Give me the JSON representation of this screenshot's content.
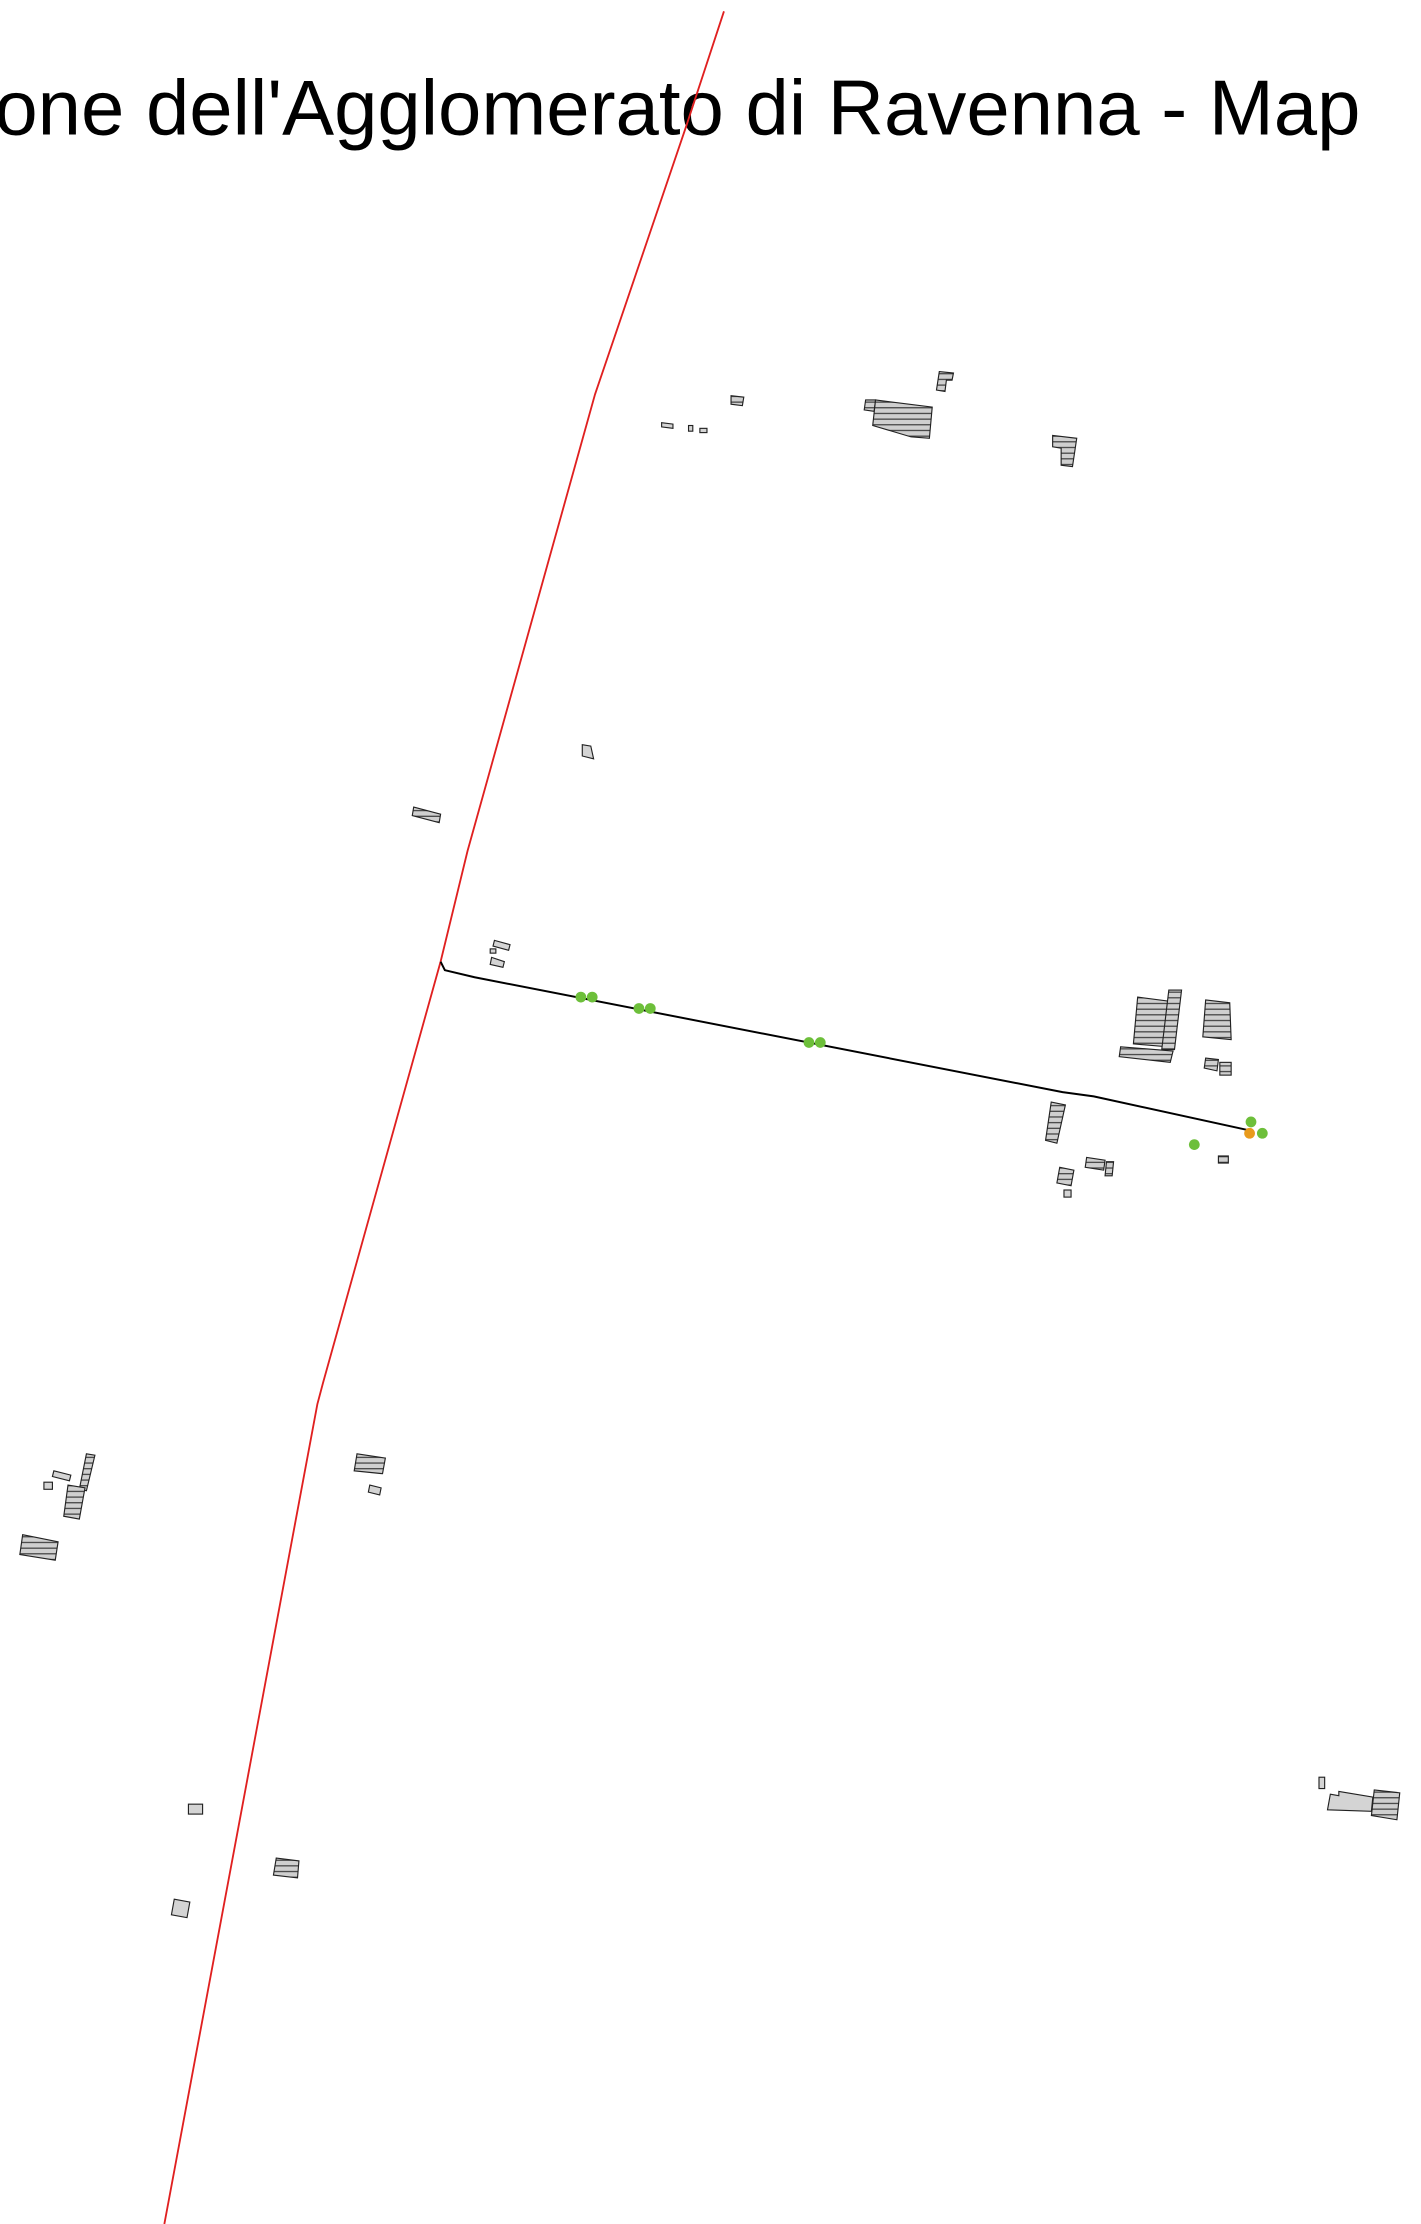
{
  "title": "one dell'Agglomerato di Ravenna - Map"
}
